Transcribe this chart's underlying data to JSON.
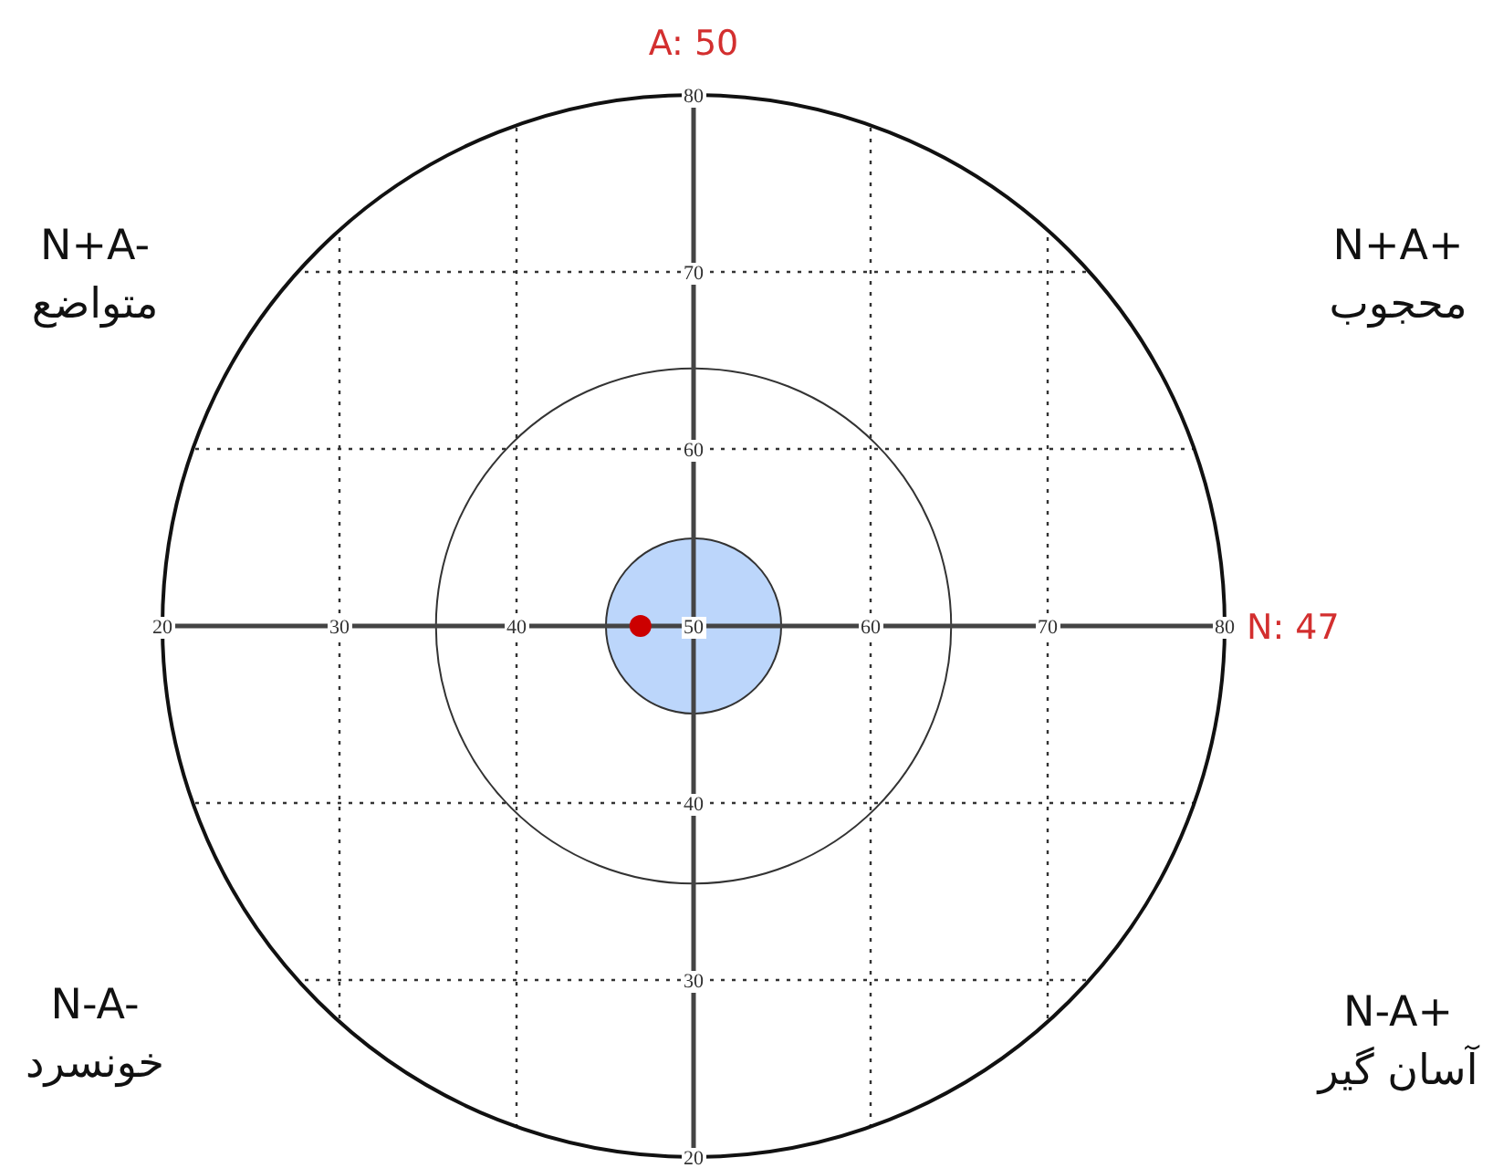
{
  "chart_data": {
    "type": "scatter",
    "series": [
      {
        "type": "bubble",
        "x": [
          50
        ],
        "values": [
          50
        ],
        "sizes": [
          1
        ],
        "color": "#bcd6fb"
      },
      {
        "x": [
          47
        ],
        "values": [
          50
        ],
        "color": "#cc0000"
      }
    ],
    "xlim": [
      20,
      80
    ],
    "ylim": [
      20,
      80
    ],
    "xticks": [
      20,
      30,
      40,
      50,
      60,
      70,
      80
    ],
    "yticks": [
      20,
      30,
      40,
      {
        "value": 50,
        "label": null
      },
      60,
      70,
      80
    ],
    "grid": true,
    "line_style": "dotted",
    "marker": "circle",
    "annotations": [
      "A: 50",
      "N: 47",
      "N+A-\nمتواضع",
      "N+A+\nمحجوب",
      "N-A-\nخونسرد",
      "N-A+\nآسان گیر"
    ]
  }
}
